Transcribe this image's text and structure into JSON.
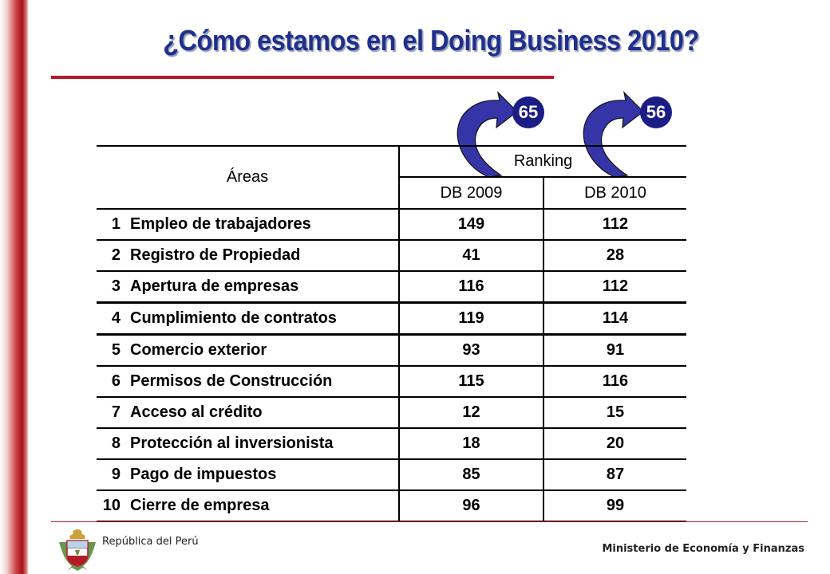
{
  "title": "¿Cómo estamos en el Doing Business 2010?",
  "badges": {
    "db2009_rank": "65",
    "db2010_rank": "56"
  },
  "table": {
    "header_areas": "Áreas",
    "header_ranking": "Ranking",
    "header_db2009": "DB 2009",
    "header_db2010": "DB 2010",
    "rows": [
      {
        "n": "1",
        "area": "Empleo de trabajadores",
        "db2009": "149",
        "db2010": "112"
      },
      {
        "n": "2",
        "area": "Registro de Propiedad",
        "db2009": "41",
        "db2010": "28"
      },
      {
        "n": "3",
        "area": "Apertura de empresas",
        "db2009": "116",
        "db2010": "112"
      },
      {
        "n": "4",
        "area": "Cumplimiento de contratos",
        "db2009": "119",
        "db2010": "114"
      },
      {
        "n": "5",
        "area": "Comercio exterior",
        "db2009": "93",
        "db2010": "91"
      },
      {
        "n": "6",
        "area": "Permisos de Construcción",
        "db2009": "115",
        "db2010": "116"
      },
      {
        "n": "7",
        "area": "Acceso al crédito",
        "db2009": "12",
        "db2010": "15"
      },
      {
        "n": "8",
        "area": "Protección al inversionista",
        "db2009": "18",
        "db2010": "20"
      },
      {
        "n": "9",
        "area": "Pago de impuestos",
        "db2009": "85",
        "db2010": "87"
      },
      {
        "n": "10",
        "area": "Cierre de empresa",
        "db2009": "96",
        "db2010": "99"
      }
    ]
  },
  "footer": {
    "left": "República del Perú",
    "right": "Ministerio de Economía y Finanzas"
  },
  "colors": {
    "title": "#1f2f8c",
    "accent_red": "#b51a2b",
    "badge": "#1c1c86"
  },
  "icons": {
    "arrow_2009": "curved-arrow-icon",
    "arrow_2010": "curved-arrow-icon",
    "emblem": "peru-coat-of-arms-icon"
  }
}
